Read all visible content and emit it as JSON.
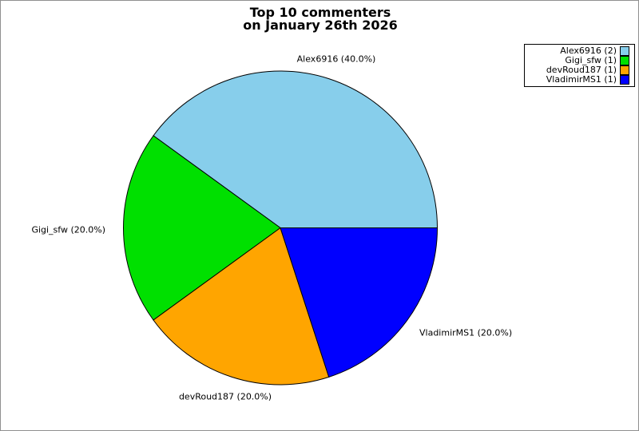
{
  "figure": {
    "title_line1": "Top 10 commenters",
    "title_line2": "on January 26th 2026"
  },
  "chart_data": {
    "type": "pie",
    "title": "Top 10 commenters on January 26th 2026",
    "start_angle_deg": 0,
    "counterclockwise": true,
    "legend_position": "upper right",
    "background_color": "#ffffff",
    "figure_border_color": "#909090",
    "slice_edge_color": "#000000",
    "slices": [
      {
        "name": "Alex6916",
        "comments": 2,
        "percent": 40.0,
        "color": "#87CEEB",
        "pie_label": "Alex6916 (40.0%)",
        "legend_label": "Alex6916 (2)"
      },
      {
        "name": "Gigi_sfw",
        "comments": 1,
        "percent": 20.0,
        "color": "#00E000",
        "pie_label": "Gigi_sfw (20.0%)",
        "legend_label": "Gigi_sfw (1)"
      },
      {
        "name": "devRoud187",
        "comments": 1,
        "percent": 20.0,
        "color": "#FFA500",
        "pie_label": "devRoud187 (20.0%)",
        "legend_label": "devRoud187 (1)"
      },
      {
        "name": "VladimirMS1",
        "comments": 1,
        "percent": 20.0,
        "color": "#0000FF",
        "pie_label": "VladimirMS1 (20.0%)",
        "legend_label": "VladimirMS1 (1)"
      }
    ]
  }
}
